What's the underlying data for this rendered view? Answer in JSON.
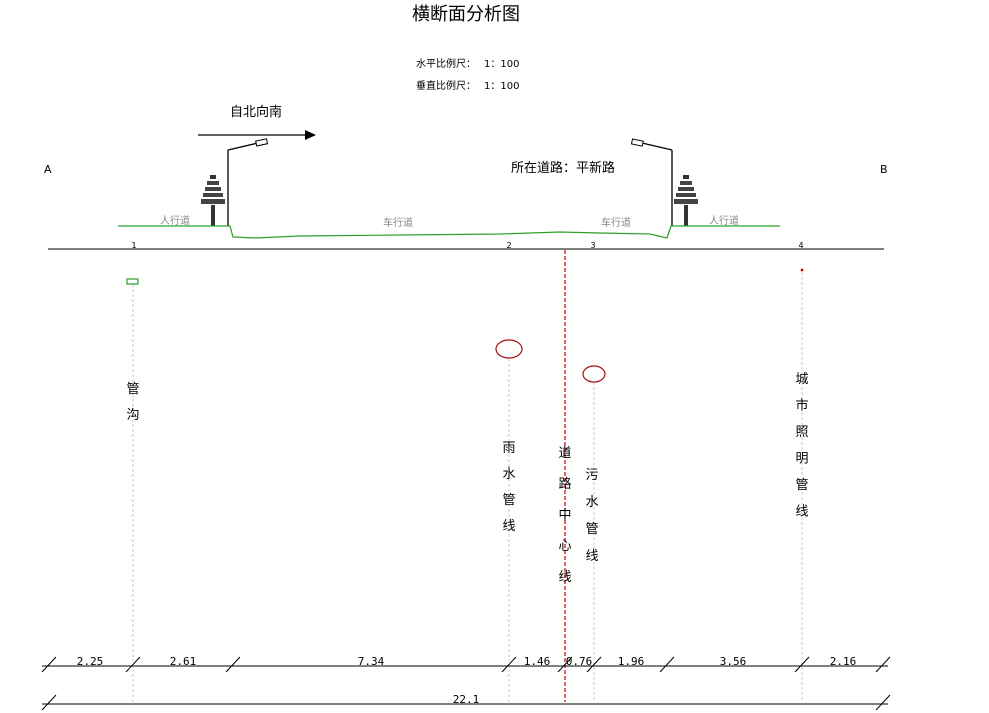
{
  "title": "横断面分析图",
  "scale": {
    "horizontal_label": "水平比例尺：",
    "horizontal_value": "1：100",
    "vertical_label": "垂直比例尺：",
    "vertical_value": "1：100"
  },
  "direction_label": "自北向南",
  "endpoint_a": "A",
  "endpoint_b": "B",
  "road_name_label": "所在道路：平新路",
  "sections": {
    "sidewalk_left": "人行道",
    "roadway_left": "车行道",
    "roadway_right": "车行道",
    "sidewalk_right": "人行道"
  },
  "markers": [
    "1",
    "2",
    "3",
    "4"
  ],
  "pipelines": {
    "trench": "管沟",
    "rain_pipe": "雨水管线",
    "center_line": "道路中心线",
    "sewage_pipe": "污水管线",
    "lighting_pipe": "城市照明管线"
  },
  "dimensions": [
    "2.25",
    "2.61",
    "7.34",
    "1.46",
    "0.76",
    "1.96",
    "3.56",
    "2.16"
  ],
  "total_width": "22.1",
  "colors": {
    "ground": "#2ca02c",
    "pipe": "#a01010",
    "center": "#cc0000",
    "drop": "#c8c8c8"
  }
}
